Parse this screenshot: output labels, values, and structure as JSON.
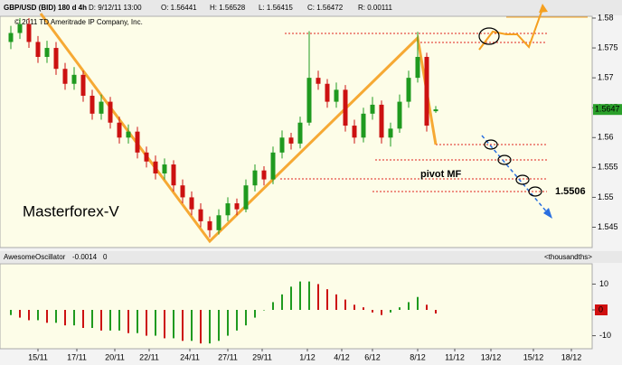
{
  "chart_data": {
    "type": "candlestick",
    "header": [
      "GBP/USD (BID) 180 d 4h",
      "D: 9/12/11 13:00",
      "O: 1.56441",
      "H: 1.56528",
      "L: 1.56415",
      "C: 1.56472",
      "R: 0.00111"
    ],
    "watermark": "© 2011 TD Ameritrade IP Company, Inc.",
    "annotations": [
      "Masterforex-V",
      "pivot MF",
      "1.5506"
    ],
    "open": [
      1.576,
      1.5775,
      1.579,
      1.576,
      1.5735,
      1.575,
      1.5715,
      1.569,
      1.5705,
      1.567,
      1.564,
      1.566,
      1.5625,
      1.56,
      1.561,
      1.5575,
      1.556,
      1.554,
      1.5555,
      1.552,
      1.55,
      1.548,
      1.546,
      1.5445,
      1.547,
      1.549,
      1.548,
      1.552,
      1.5545,
      1.553,
      1.5575,
      1.56,
      1.559,
      1.5625,
      1.57,
      1.569,
      1.566,
      1.568,
      1.562,
      1.56,
      1.564,
      1.5655,
      1.56,
      1.5615,
      1.566,
      1.57,
      1.5735,
      1.56441
    ],
    "high": [
      1.5787,
      1.58,
      1.58,
      1.577,
      1.5762,
      1.576,
      1.5725,
      1.5718,
      1.5712,
      1.568,
      1.5672,
      1.5668,
      1.5635,
      1.5622,
      1.5618,
      1.5585,
      1.557,
      1.5565,
      1.5562,
      1.553,
      1.551,
      1.549,
      1.5468,
      1.548,
      1.55,
      1.5498,
      1.553,
      1.5555,
      1.5552,
      1.5585,
      1.5612,
      1.5608,
      1.5635,
      1.5778,
      1.5712,
      1.5698,
      1.5692,
      1.5688,
      1.563,
      1.565,
      1.5668,
      1.5662,
      1.5625,
      1.5672,
      1.5712,
      1.5777,
      1.5742,
      1.56528
    ],
    "low": [
      1.5748,
      1.5765,
      1.575,
      1.5725,
      1.5725,
      1.5705,
      1.568,
      1.568,
      1.566,
      1.563,
      1.563,
      1.5615,
      1.559,
      1.559,
      1.5565,
      1.555,
      1.553,
      1.553,
      1.551,
      1.549,
      1.547,
      1.545,
      1.5433,
      1.5438,
      1.546,
      1.547,
      1.5475,
      1.551,
      1.552,
      1.5522,
      1.5565,
      1.558,
      1.5582,
      1.562,
      1.568,
      1.565,
      1.565,
      1.561,
      1.559,
      1.5592,
      1.563,
      1.559,
      1.5585,
      1.5608,
      1.565,
      1.5692,
      1.561,
      1.56415
    ],
    "close": [
      1.5775,
      1.579,
      1.576,
      1.5735,
      1.575,
      1.5715,
      1.569,
      1.5705,
      1.567,
      1.564,
      1.566,
      1.5625,
      1.56,
      1.561,
      1.5575,
      1.556,
      1.554,
      1.5555,
      1.552,
      1.55,
      1.548,
      1.546,
      1.5445,
      1.547,
      1.549,
      1.548,
      1.552,
      1.5545,
      1.553,
      1.5575,
      1.56,
      1.559,
      1.5625,
      1.57,
      1.569,
      1.566,
      1.568,
      1.562,
      1.56,
      1.564,
      1.5655,
      1.56,
      1.5615,
      1.566,
      1.57,
      1.5735,
      1.562,
      1.56472
    ],
    "up_color": "#1f9a1f",
    "down_color": "#cc1111",
    "last_price": 1.5647,
    "xlim": [
      -1.2,
      64.3
    ],
    "xticks": [
      {
        "value": 3,
        "label": "15/11"
      },
      {
        "value": 7.3,
        "label": "17/11"
      },
      {
        "value": 11.5,
        "label": "20/11"
      },
      {
        "value": 15.3,
        "label": "22/11"
      },
      {
        "value": 19.8,
        "label": "24/11"
      },
      {
        "value": 24,
        "label": "27/11"
      },
      {
        "value": 27.8,
        "label": "29/11"
      },
      {
        "value": 32.8,
        "label": "1/12"
      },
      {
        "value": 36.6,
        "label": "4/12"
      },
      {
        "value": 40,
        "label": "6/12"
      },
      {
        "value": 45,
        "label": "8/12"
      },
      {
        "value": 49.1,
        "label": "11/12"
      },
      {
        "value": 53.1,
        "label": "13/12"
      },
      {
        "value": 57.8,
        "label": "15/12"
      },
      {
        "value": 62,
        "label": "18/12"
      }
    ],
    "ylim": [
      1.5416,
      1.5803
    ],
    "yticks": [
      1.545,
      1.55,
      1.555,
      1.56,
      1.565,
      1.57,
      1.575,
      1.58
    ],
    "oscillator": {
      "header": [
        "AwesomeOscillator",
        "-0.0014",
        "0"
      ],
      "unit_label": "<thousandths>",
      "values": [
        -2,
        -3,
        -4,
        -4,
        -5,
        -5,
        -6,
        -6,
        -7,
        -7,
        -8,
        -8,
        -8,
        -9,
        -9,
        -10,
        -10,
        -11,
        -11,
        -12,
        -12,
        -13,
        -13,
        -12,
        -10,
        -8,
        -6,
        -3,
        0,
        3,
        6,
        9,
        11,
        11,
        10,
        8,
        6,
        4,
        2,
        1,
        -1,
        -2,
        -1,
        1,
        3,
        5,
        2,
        -1.4
      ],
      "current": 0,
      "ylim": [
        -14.7,
        16.8
      ],
      "yticks": [
        -10,
        0,
        10
      ]
    }
  }
}
